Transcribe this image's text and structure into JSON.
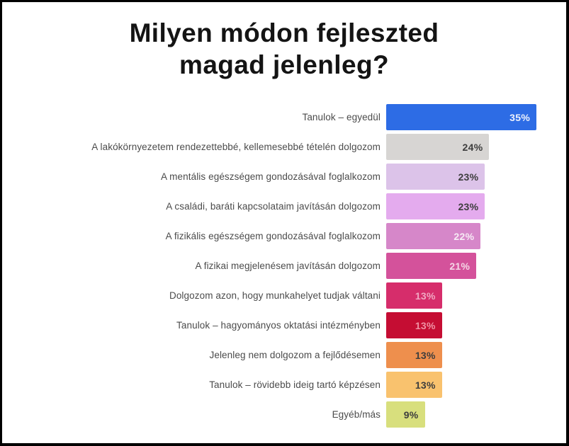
{
  "page": {
    "background": "#ffffff",
    "frame_color": "#000000"
  },
  "title": {
    "lines": [
      "Milyen módon fejleszted",
      "magad jelenleg?"
    ],
    "full": "Milyen módon fejleszted magad jelenleg?"
  },
  "chart_data": {
    "type": "bar",
    "orientation": "horizontal",
    "title": "Milyen módon fejleszted magad jelenleg?",
    "xlabel": "",
    "ylabel": "",
    "unit": "%",
    "xlim": [
      0,
      35
    ],
    "grid": false,
    "legend": false,
    "value_labels": "inside-right",
    "categories": [
      "Tanulok – egyedül",
      "A lakókörnyezetem rendezettebbé, kellemesebbé tételén dolgozom",
      "A mentális egészségem gondozásával foglalkozom",
      "A családi, baráti kapcsolataim javításán dolgozom",
      "A fizikális egészségem gondozásával foglalkozom",
      "A fizikai megjelenésem javításán dolgozom",
      "Dolgozom azon, hogy munkahelyet tudjak váltani",
      "Tanulok – hagyományos oktatási intézményben",
      "Jelenleg nem dolgozom a fejlődésemen",
      "Tanulok – rövidebb ideig tartó képzésen",
      "Egyéb/más"
    ],
    "values": [
      35,
      24,
      23,
      23,
      22,
      21,
      13,
      13,
      13,
      13,
      9
    ],
    "series": [
      {
        "label": "Tanulok – egyedül",
        "value": 35,
        "display": "35%",
        "bar_color": "#2d6ce5",
        "value_color": "#eef2fc"
      },
      {
        "label": "A lakókörnyezetem rendezettebbé, kellemesebbé tételén dolgozom",
        "value": 24,
        "display": "24%",
        "bar_color": "#d7d5d3",
        "value_color": "#3d3d3d"
      },
      {
        "label": "A mentális egészségem gondozásával foglalkozom",
        "value": 23,
        "display": "23%",
        "bar_color": "#dcc3e9",
        "value_color": "#3d3d3d"
      },
      {
        "label": "A családi, baráti kapcsolataim javításán dolgozom",
        "value": 23,
        "display": "23%",
        "bar_color": "#e4abee",
        "value_color": "#3d3d3d"
      },
      {
        "label": "A fizikális egészségem gondozásával foglalkozom",
        "value": 22,
        "display": "22%",
        "bar_color": "#d687c9",
        "value_color": "#f7ebf5"
      },
      {
        "label": "A fizikai megjelenésem javításán dolgozom",
        "value": 21,
        "display": "21%",
        "bar_color": "#d4529b",
        "value_color": "#f5d7e7"
      },
      {
        "label": "Dolgozom azon, hogy munkahelyet tudjak váltani",
        "value": 13,
        "display": "13%",
        "bar_color": "#d62d6b",
        "value_color": "#f0a8c2"
      },
      {
        "label": "Tanulok – hagyományos oktatási intézményben",
        "value": 13,
        "display": "13%",
        "bar_color": "#c50d33",
        "value_color": "#ef92a4"
      },
      {
        "label": "Jelenleg nem dolgozom a fejlődésemen",
        "value": 13,
        "display": "13%",
        "bar_color": "#ee8f4d",
        "value_color": "#3d3d3d"
      },
      {
        "label": "Tanulok – rövidebb ideig tartó képzésen",
        "value": 13,
        "display": "13%",
        "bar_color": "#f9c26e",
        "value_color": "#3d3d3d"
      },
      {
        "label": "Egyéb/más",
        "value": 9,
        "display": "9%",
        "bar_color": "#d8df7d",
        "value_color": "#3d3d3d"
      }
    ]
  }
}
